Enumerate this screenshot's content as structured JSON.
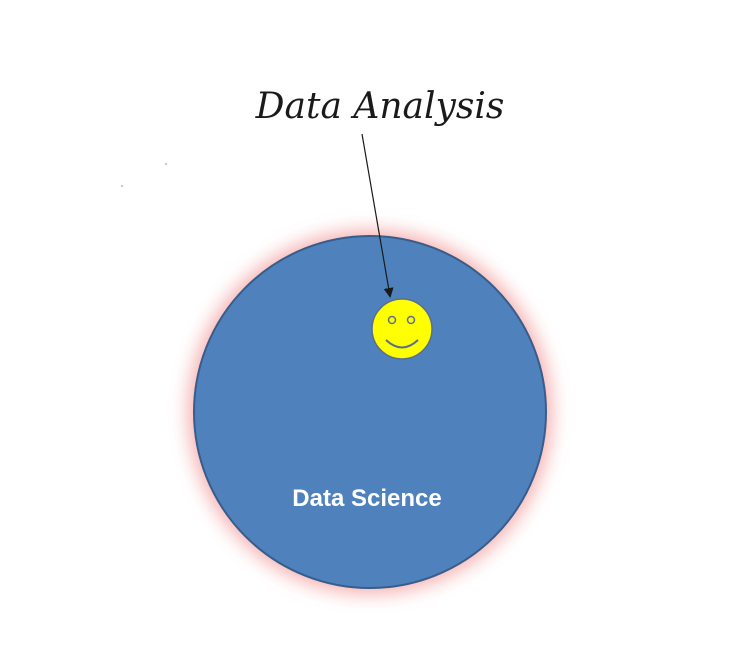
{
  "diagram": {
    "outer_label": "Data Science",
    "callout_label": "Data Analysis",
    "colors": {
      "circle_fill": "#4f81bd",
      "circle_stroke": "#385d8a",
      "glow": "#f4a3a3",
      "smiley_fill": "#ffff00",
      "smiley_stroke": "#5a6f8e",
      "text_dark": "#1a1a1a",
      "text_light": "#ffffff"
    },
    "icons": {
      "smiley": "smiley-face-icon",
      "arrow": "arrow-icon"
    }
  }
}
